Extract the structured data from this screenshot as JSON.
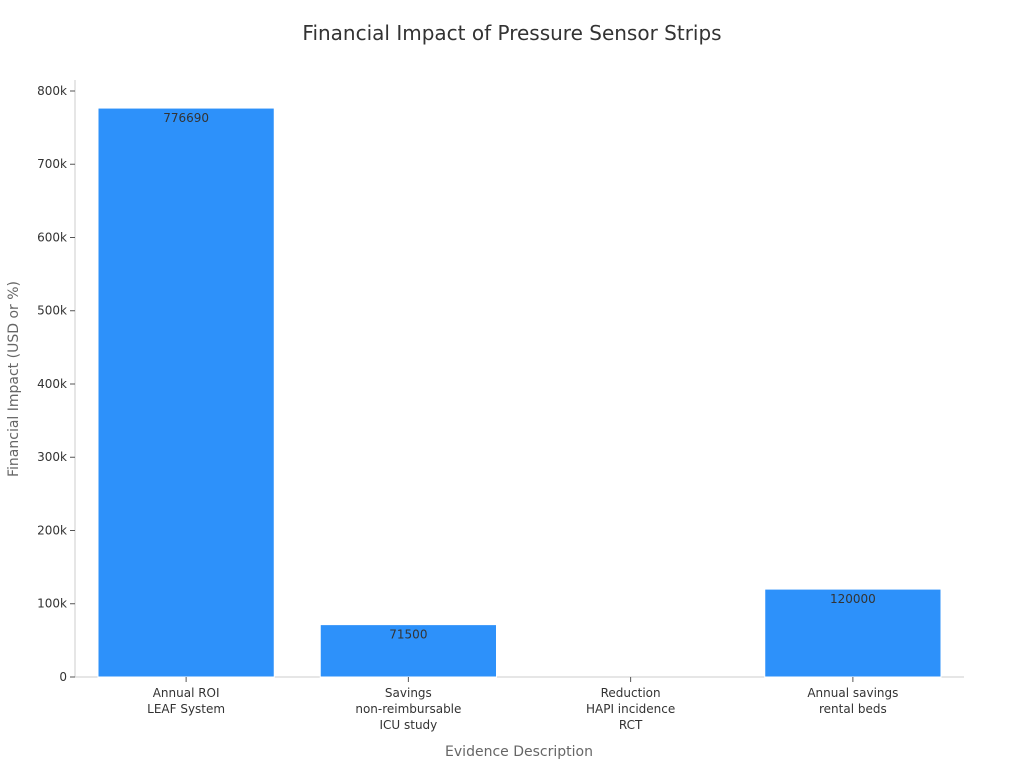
{
  "chart_data": {
    "type": "bar",
    "title": "Financial Impact of Pressure Sensor Strips",
    "xlabel": "Evidence Description",
    "ylabel": "Financial Impact (USD or %)",
    "categories": [
      [
        "Annual ROI",
        "LEAF System"
      ],
      [
        "Savings",
        "non-reimbursable",
        "ICU study"
      ],
      [
        "Reduction",
        "HAPI incidence",
        "RCT"
      ],
      [
        "Annual savings",
        "rental beds"
      ]
    ],
    "values": [
      776690,
      71500,
      null,
      120000
    ],
    "data_labels": [
      "776690",
      "71500",
      "",
      "120000"
    ],
    "ylim": [
      0,
      815000
    ],
    "yticks": [
      0,
      100000,
      200000,
      300000,
      400000,
      500000,
      600000,
      700000,
      800000
    ],
    "ytick_labels": [
      "0",
      "100k",
      "200k",
      "300k",
      "400k",
      "500k",
      "600k",
      "700k",
      "800k"
    ],
    "bar_color": "#2d91fa",
    "grid": false,
    "legend": "none"
  }
}
